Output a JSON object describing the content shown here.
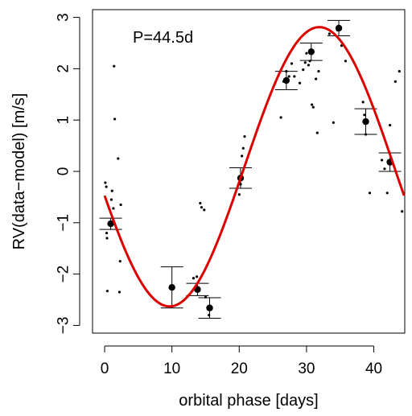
{
  "chart_data": {
    "type": "scatter",
    "title": "",
    "xlabel": "orbital phase [days]",
    "ylabel": "RV(data−model) [m/s]",
    "xlim": [
      -1.8,
      44.6
    ],
    "ylim": [
      -3.15,
      3.15
    ],
    "xticks": [
      0,
      10,
      20,
      30,
      40
    ],
    "yticks": [
      -3,
      -2,
      -1,
      0,
      1,
      2,
      3
    ],
    "xtick_labels": [
      "0",
      "10",
      "20",
      "30",
      "40"
    ],
    "ytick_labels": [
      "−3",
      "−2",
      "−1",
      "0",
      "1",
      "2",
      "3"
    ],
    "annotation": "P=44.5d",
    "grid": false,
    "legend": "none",
    "raw_points": [
      [
        0.1,
        -0.22
      ],
      [
        0.25,
        -0.3
      ],
      [
        0.3,
        -1.2
      ],
      [
        0.35,
        -1.3
      ],
      [
        0.4,
        -2.33
      ],
      [
        1.0,
        -0.55
      ],
      [
        1.1,
        -0.38
      ],
      [
        1.3,
        -0.72
      ],
      [
        1.4,
        2.05
      ],
      [
        1.5,
        1.02
      ],
      [
        2.0,
        0.25
      ],
      [
        2.2,
        -2.35
      ],
      [
        2.3,
        -1.75
      ],
      [
        2.4,
        -0.65
      ],
      [
        13.2,
        -2.08
      ],
      [
        13.7,
        -2.05
      ],
      [
        14.2,
        -0.62
      ],
      [
        14.4,
        -0.7
      ],
      [
        14.8,
        -0.75
      ],
      [
        15.0,
        -2.45
      ],
      [
        15.5,
        -2.8
      ],
      [
        20.0,
        -0.45
      ],
      [
        20.2,
        -0.25
      ],
      [
        20.4,
        0.3
      ],
      [
        20.6,
        0.45
      ],
      [
        20.8,
        0.68
      ],
      [
        26.2,
        1.05
      ],
      [
        26.6,
        1.75
      ],
      [
        27.0,
        1.95
      ],
      [
        27.4,
        1.85
      ],
      [
        27.8,
        2.1
      ],
      [
        28.2,
        1.85
      ],
      [
        29.0,
        1.72
      ],
      [
        29.5,
        1.98
      ],
      [
        29.8,
        2.12
      ],
      [
        30.0,
        2.3
      ],
      [
        30.3,
        2.07
      ],
      [
        30.5,
        2.15
      ],
      [
        30.8,
        1.3
      ],
      [
        31.0,
        1.25
      ],
      [
        31.4,
        1.8
      ],
      [
        31.6,
        0.75
      ],
      [
        31.8,
        1.95
      ],
      [
        33.4,
        2.68
      ],
      [
        34.0,
        0.95
      ],
      [
        34.6,
        2.75
      ],
      [
        34.8,
        2.8
      ],
      [
        35.2,
        2.45
      ],
      [
        35.8,
        2.15
      ],
      [
        38.4,
        1.35
      ],
      [
        38.6,
        1.1
      ],
      [
        38.8,
        0.72
      ],
      [
        39.4,
        -0.42
      ],
      [
        41.2,
        0.22
      ],
      [
        41.6,
        0.05
      ],
      [
        42.0,
        -0.42
      ],
      [
        42.4,
        0.9
      ],
      [
        43.2,
        1.75
      ],
      [
        43.8,
        1.95
      ],
      [
        44.2,
        -0.78
      ]
    ],
    "binned_points": [
      {
        "x": 0.9,
        "y": -1.02,
        "err": 0.11
      },
      {
        "x": 10.0,
        "y": -2.26,
        "err": 0.4
      },
      {
        "x": 13.8,
        "y": -2.3,
        "err": 0.12
      },
      {
        "x": 15.6,
        "y": -2.66,
        "err": 0.2
      },
      {
        "x": 20.2,
        "y": -0.13,
        "err": 0.2
      },
      {
        "x": 27.0,
        "y": 1.77,
        "err": 0.18
      },
      {
        "x": 30.7,
        "y": 2.33,
        "err": 0.17
      },
      {
        "x": 34.8,
        "y": 2.79,
        "err": 0.15
      },
      {
        "x": 38.8,
        "y": 0.97,
        "err": 0.25
      },
      {
        "x": 42.4,
        "y": 0.18,
        "err": 0.18
      }
    ],
    "model_curve": {
      "name": "",
      "color": "#dd0000",
      "function": "sine",
      "amplitude": 2.72,
      "period": 44.5,
      "offset": 0.09,
      "peak_x": 31.9,
      "x_range": [
        0,
        44.5
      ]
    }
  }
}
